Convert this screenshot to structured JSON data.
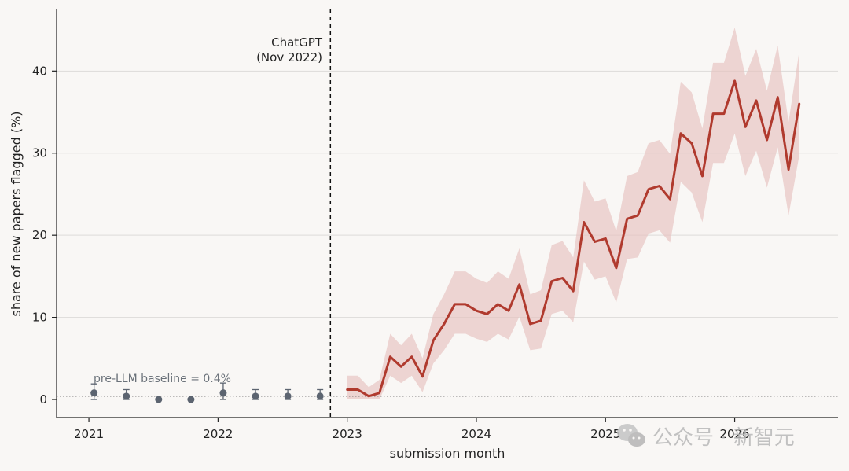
{
  "chart_data": {
    "type": "line",
    "xlabel": "submission month",
    "ylabel": "share of new papers flagged (%)",
    "xlim": [
      2020.75,
      2026.8
    ],
    "ylim": [
      -2.2,
      47.5
    ],
    "x_ticks": [
      2021,
      2022,
      2023,
      2024,
      2025,
      2026
    ],
    "x_tick_labels": [
      "2021",
      "2022",
      "2023",
      "2024",
      "2025",
      "2026"
    ],
    "y_ticks": [
      0,
      10,
      20,
      30,
      40
    ],
    "y_tick_labels": [
      "0",
      "10",
      "20",
      "30",
      "40"
    ],
    "grid": "horizontal",
    "annotations": {
      "chatgpt_line": {
        "x": 2022.87,
        "label_line1": "ChatGPT",
        "label_line2": "(Nov 2022)"
      },
      "baseline": {
        "y": 0.4,
        "label": "pre-LLM baseline = 0.4%"
      }
    },
    "pre_llm_points": [
      {
        "x": 2021.04,
        "y": 0.8,
        "low": 0.0,
        "high": 1.9
      },
      {
        "x": 2021.29,
        "y": 0.4,
        "low": 0.0,
        "high": 1.2
      },
      {
        "x": 2021.54,
        "y": 0.0,
        "low": 0.0,
        "high": 0.0
      },
      {
        "x": 2021.79,
        "y": 0.0,
        "low": 0.0,
        "high": 0.0
      },
      {
        "x": 2022.04,
        "y": 0.8,
        "low": 0.0,
        "high": 2.0
      },
      {
        "x": 2022.29,
        "y": 0.4,
        "low": 0.0,
        "high": 1.2
      },
      {
        "x": 2022.54,
        "y": 0.4,
        "low": 0.0,
        "high": 1.2
      },
      {
        "x": 2022.79,
        "y": 0.4,
        "low": 0.0,
        "high": 1.2
      }
    ],
    "series": [
      {
        "x": [
          2023.0,
          2023.083,
          2023.167,
          2023.25,
          2023.333,
          2023.417,
          2023.5,
          2023.583,
          2023.667,
          2023.75,
          2023.833,
          2023.917,
          2024.0,
          2024.083,
          2024.167,
          2024.25,
          2024.333,
          2024.417,
          2024.5,
          2024.583,
          2024.667,
          2024.75,
          2024.833,
          2024.917,
          2025.0,
          2025.083,
          2025.167,
          2025.25,
          2025.333,
          2025.417,
          2025.5,
          2025.583,
          2025.667,
          2025.75,
          2025.833,
          2025.917,
          2026.0,
          2026.083,
          2026.167,
          2026.25,
          2026.333,
          2026.417,
          2026.5
        ],
        "values": [
          1.2,
          1.2,
          0.4,
          0.8,
          5.2,
          4.0,
          5.2,
          2.8,
          7.2,
          9.2,
          11.6,
          11.6,
          10.8,
          10.4,
          11.6,
          10.8,
          14.0,
          9.2,
          9.6,
          14.4,
          14.8,
          13.2,
          21.6,
          19.2,
          19.6,
          16.0,
          22.0,
          22.4,
          25.6,
          26.0,
          24.4,
          32.4,
          31.2,
          27.2,
          34.8,
          34.8,
          38.8,
          33.2,
          36.4,
          31.6,
          36.8,
          28.0,
          36.0
        ],
        "lower": [
          0.0,
          0.0,
          0.0,
          0.0,
          2.9,
          2.0,
          2.9,
          0.9,
          4.4,
          6.0,
          8.0,
          8.0,
          7.4,
          7.0,
          8.0,
          7.3,
          10.1,
          6.0,
          6.2,
          10.4,
          10.8,
          9.4,
          16.8,
          14.6,
          15.0,
          11.8,
          17.1,
          17.3,
          20.2,
          20.6,
          19.1,
          26.5,
          25.2,
          21.6,
          28.8,
          28.8,
          32.4,
          27.2,
          30.3,
          25.8,
          30.7,
          22.4,
          29.7
        ],
        "upper": [
          2.9,
          2.9,
          1.5,
          2.4,
          8.0,
          6.6,
          8.0,
          5.0,
          10.4,
          12.8,
          15.6,
          15.6,
          14.7,
          14.2,
          15.6,
          14.7,
          18.4,
          12.8,
          13.3,
          18.8,
          19.3,
          17.3,
          26.7,
          24.1,
          24.5,
          20.5,
          27.2,
          27.7,
          31.2,
          31.6,
          29.9,
          38.7,
          37.4,
          33.0,
          41.0,
          41.0,
          45.3,
          39.4,
          42.7,
          37.6,
          43.1,
          33.8,
          42.4
        ]
      }
    ],
    "colors": {
      "line": "#b03a2e",
      "band": "#e6c1be",
      "points": "#5c6470",
      "grid": "#dddbd9",
      "axis": "#222222",
      "background": "#f9f7f5"
    }
  },
  "watermark": {
    "icon": "wechat-icon",
    "text": "公众号 · 新智元"
  }
}
